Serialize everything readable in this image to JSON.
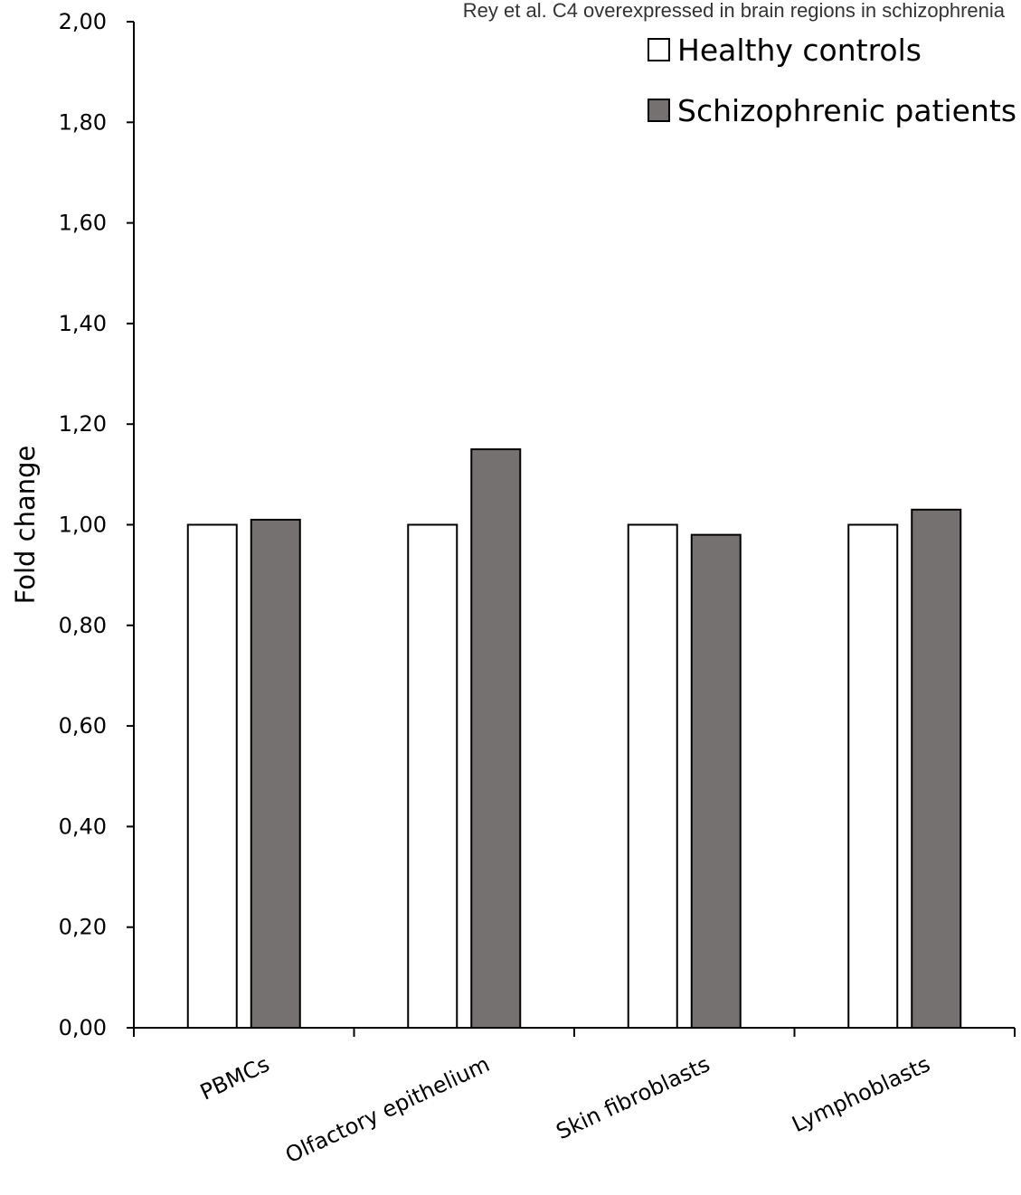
{
  "caption": "Rey et al. C4 overexpressed in brain regions in schizophrenia",
  "chart_data": {
    "type": "bar",
    "categories": [
      "PBMCs",
      "Olfactory epithelium",
      "Skin fibroblasts",
      "Lymphoblasts"
    ],
    "series": [
      {
        "name": "Healthy controls",
        "values": [
          1.0,
          1.0,
          1.0,
          1.0
        ],
        "color": "#ffffff"
      },
      {
        "name": "Schizophrenic patients",
        "values": [
          1.01,
          1.15,
          0.98,
          1.03
        ],
        "color": "#757170"
      }
    ],
    "title": "",
    "xlabel": "",
    "ylabel": "Fold change",
    "ylim": [
      0,
      2
    ],
    "yticks": [
      "0,00",
      "0,20",
      "0,40",
      "0,60",
      "0,80",
      "1,00",
      "1,20",
      "1,40",
      "1,60",
      "1,80",
      "2,00"
    ],
    "grid": false,
    "legend_position": "top-right"
  }
}
